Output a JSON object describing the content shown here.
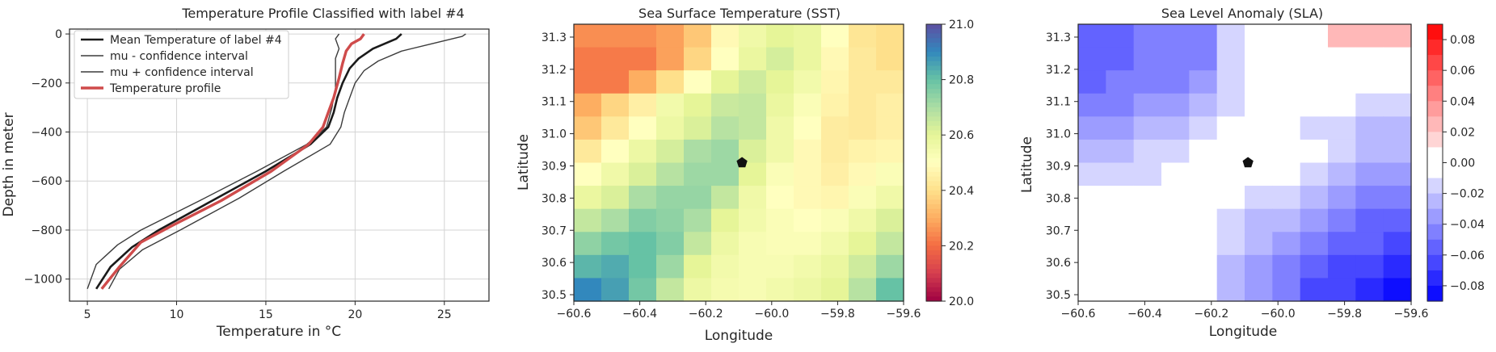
{
  "chart_data": [
    {
      "type": "line",
      "title": "Temperature Profile Classified with label #4",
      "xlabel": "Temperature in °C",
      "ylabel": "Depth in meter",
      "xlim": [
        4,
        27.5
      ],
      "ylim": [
        -1090,
        20
      ],
      "xticks": [
        5,
        10,
        15,
        20,
        25
      ],
      "yticks": [
        0,
        -200,
        -400,
        -600,
        -800,
        -1000
      ],
      "grid": true,
      "legend_position": "top-left",
      "series": [
        {
          "name": "Mean Temperature of label #4",
          "color": "#1a1a1a",
          "width": 2.6,
          "points": [
            [
              22.6,
              0
            ],
            [
              22.3,
              -20
            ],
            [
              21,
              -60
            ],
            [
              20.2,
              -100
            ],
            [
              19.7,
              -140
            ],
            [
              19.3,
              -200
            ],
            [
              19,
              -260
            ],
            [
              18.8,
              -320
            ],
            [
              18.5,
              -380
            ],
            [
              17.5,
              -450
            ],
            [
              15,
              -560
            ],
            [
              12,
              -680
            ],
            [
              9,
              -800
            ],
            [
              7.5,
              -870
            ],
            [
              6.3,
              -950
            ],
            [
              5.5,
              -1040
            ]
          ]
        },
        {
          "name": "mu - confidence interval",
          "color": "#3c3c3c",
          "width": 1.4,
          "points": [
            [
              19.1,
              0
            ],
            [
              18.9,
              -20
            ],
            [
              19.1,
              -60
            ],
            [
              18.9,
              -100
            ],
            [
              18.9,
              -160
            ],
            [
              18.9,
              -220
            ],
            [
              18.7,
              -300
            ],
            [
              18.4,
              -380
            ],
            [
              17.3,
              -450
            ],
            [
              14.5,
              -560
            ],
            [
              11.3,
              -680
            ],
            [
              8,
              -800
            ],
            [
              6.7,
              -860
            ],
            [
              5.5,
              -940
            ],
            [
              5,
              -1040
            ]
          ]
        },
        {
          "name": "mu + confidence interval",
          "color": "#3c3c3c",
          "width": 1.4,
          "points": [
            [
              26.2,
              0
            ],
            [
              26,
              -10
            ],
            [
              24.3,
              -40
            ],
            [
              22.6,
              -70
            ],
            [
              21.3,
              -110
            ],
            [
              20.5,
              -150
            ],
            [
              20,
              -200
            ],
            [
              19.7,
              -260
            ],
            [
              19.4,
              -320
            ],
            [
              19.2,
              -380
            ],
            [
              18.6,
              -450
            ],
            [
              16,
              -560
            ],
            [
              13.5,
              -670
            ],
            [
              10.2,
              -800
            ],
            [
              8.1,
              -880
            ],
            [
              6.8,
              -960
            ],
            [
              6.2,
              -1040
            ]
          ]
        },
        {
          "name": "Temperature profile",
          "color": "#cf4b4b",
          "width": 3.4,
          "points": [
            [
              20.5,
              0
            ],
            [
              20.3,
              -20
            ],
            [
              19.8,
              -40
            ],
            [
              19.5,
              -70
            ],
            [
              19.3,
              -120
            ],
            [
              19.1,
              -180
            ],
            [
              18.8,
              -260
            ],
            [
              18.5,
              -320
            ],
            [
              18.2,
              -380
            ],
            [
              17.4,
              -450
            ],
            [
              15.3,
              -560
            ],
            [
              12.5,
              -680
            ],
            [
              9.8,
              -780
            ],
            [
              8,
              -850
            ],
            [
              6.8,
              -950
            ],
            [
              5.8,
              -1040
            ]
          ]
        }
      ]
    },
    {
      "type": "heatmap",
      "title": "Sea Surface Temperature (SST)",
      "xlabel": "Longitude",
      "ylabel": "Latitude",
      "xlim": [
        -60.6,
        -59.6
      ],
      "ylim": [
        30.48,
        31.34
      ],
      "xticks": [
        -60.6,
        -60.4,
        -60.2,
        -60.0,
        -59.8,
        -59.6
      ],
      "xtick_labels": [
        "−60.6",
        "−60.4",
        "−60.2",
        "−60.0",
        "−59.8",
        "−59.6"
      ],
      "yticks": [
        30.5,
        30.6,
        30.7,
        30.8,
        30.9,
        31.0,
        31.1,
        31.2,
        31.3
      ],
      "yticks_labels": [
        "30.5",
        "30.6",
        "30.7",
        "30.8",
        "30.9",
        "31.0",
        "31.1",
        "31.2",
        "31.3"
      ],
      "cmap": "Spectral",
      "colorbar_range": [
        20.0,
        21.0
      ],
      "colorbar_ticks": [
        20.0,
        20.2,
        20.4,
        20.6,
        20.8,
        21.0
      ],
      "colorbar_tick_labels": [
        "20.0",
        "20.2",
        "20.4",
        "20.6",
        "20.8",
        "21.0"
      ],
      "marker": {
        "lon": -60.09,
        "lat": 30.91,
        "shape": "pentagon",
        "color": "#111111"
      },
      "grid_values": [
        [
          20.25,
          20.25,
          20.25,
          20.28,
          20.35,
          20.48,
          20.56,
          20.6,
          20.58,
          20.5,
          20.42,
          20.4
        ],
        [
          20.22,
          20.22,
          20.22,
          20.28,
          20.38,
          20.5,
          20.58,
          20.63,
          20.58,
          20.48,
          20.43,
          20.4
        ],
        [
          20.22,
          20.22,
          20.3,
          20.4,
          20.5,
          20.6,
          20.64,
          20.6,
          20.55,
          20.47,
          20.43,
          20.43
        ],
        [
          20.3,
          20.38,
          20.45,
          20.55,
          20.6,
          20.65,
          20.66,
          20.58,
          20.52,
          20.46,
          20.43,
          20.45
        ],
        [
          20.35,
          20.43,
          20.5,
          20.57,
          20.62,
          20.68,
          20.66,
          20.56,
          20.5,
          20.44,
          20.43,
          20.45
        ],
        [
          20.43,
          20.5,
          20.57,
          20.63,
          20.7,
          20.72,
          20.62,
          20.56,
          20.48,
          20.44,
          20.46,
          20.47
        ],
        [
          20.5,
          20.56,
          20.62,
          20.68,
          20.72,
          20.72,
          20.6,
          20.52,
          20.48,
          20.45,
          20.48,
          20.52
        ],
        [
          20.58,
          20.62,
          20.7,
          20.73,
          20.73,
          20.66,
          20.56,
          20.5,
          20.48,
          20.47,
          20.52,
          20.56
        ],
        [
          20.66,
          20.7,
          20.76,
          20.74,
          20.7,
          20.6,
          20.55,
          20.52,
          20.5,
          20.52,
          20.56,
          20.62
        ],
        [
          20.74,
          20.78,
          20.8,
          20.76,
          20.66,
          20.57,
          20.53,
          20.52,
          20.52,
          20.55,
          20.6,
          20.66
        ],
        [
          20.82,
          20.84,
          20.8,
          20.72,
          20.6,
          20.55,
          20.53,
          20.53,
          20.55,
          20.58,
          20.64,
          20.72
        ],
        [
          20.9,
          20.86,
          20.78,
          20.66,
          20.57,
          20.54,
          20.53,
          20.55,
          20.57,
          20.6,
          20.68,
          20.8
        ]
      ]
    },
    {
      "type": "heatmap",
      "title": "Sea Level Anomaly (SLA)",
      "xlabel": "Longitude",
      "ylabel": "Latitude",
      "xlim": [
        -60.6,
        -59.6
      ],
      "ylim": [
        30.48,
        31.34
      ],
      "xticks": [
        -60.6,
        -60.4,
        -60.2,
        -60.0,
        -59.8,
        -59.6
      ],
      "xtick_labels": [
        "−60.6",
        "−60.4",
        "−60.2",
        "−60.0",
        "−59.8",
        "−59.6"
      ],
      "yticks": [
        30.5,
        30.6,
        30.7,
        30.8,
        30.9,
        31.0,
        31.1,
        31.2,
        31.3
      ],
      "yticks_labels": [
        "30.5",
        "30.6",
        "30.7",
        "30.8",
        "30.9",
        "31.0",
        "31.1",
        "31.2",
        "31.3"
      ],
      "cmap": "bwr (discrete)",
      "colorbar_range": [
        -0.09,
        0.09
      ],
      "colorbar_ticks": [
        -0.08,
        -0.06,
        -0.04,
        -0.02,
        0.0,
        0.02,
        0.04,
        0.06,
        0.08
      ],
      "colorbar_tick_labels": [
        "−0.08",
        "−0.06",
        "−0.04",
        "−0.02",
        "0.00",
        "0.02",
        "0.04",
        "0.06",
        "0.08"
      ],
      "marker": {
        "lon": -60.09,
        "lat": 30.91,
        "shape": "pentagon",
        "color": "#111111"
      },
      "grid_values": [
        [
          -0.06,
          -0.06,
          -0.05,
          -0.05,
          -0.05,
          -0.02,
          -0.01,
          0.0,
          0.0,
          0.02,
          0.02,
          0.02
        ],
        [
          -0.06,
          -0.06,
          -0.05,
          -0.05,
          -0.05,
          -0.02,
          -0.01,
          0.0,
          0.0,
          0.0,
          0.0,
          0.0
        ],
        [
          -0.06,
          -0.05,
          -0.05,
          -0.05,
          -0.04,
          -0.02,
          -0.01,
          0.0,
          0.0,
          0.0,
          0.0,
          -0.01
        ],
        [
          -0.05,
          -0.05,
          -0.04,
          -0.04,
          -0.03,
          -0.02,
          -0.01,
          -0.01,
          -0.01,
          -0.01,
          -0.02,
          -0.02
        ],
        [
          -0.04,
          -0.04,
          -0.03,
          -0.03,
          -0.02,
          -0.01,
          -0.01,
          -0.01,
          -0.02,
          -0.02,
          -0.03,
          -0.03
        ],
        [
          -0.03,
          -0.03,
          -0.02,
          -0.02,
          -0.01,
          -0.01,
          -0.01,
          0.0,
          -0.01,
          -0.02,
          -0.03,
          -0.03
        ],
        [
          -0.02,
          -0.02,
          -0.02,
          -0.01,
          -0.01,
          -0.01,
          -0.01,
          -0.01,
          -0.02,
          -0.03,
          -0.04,
          -0.04
        ],
        [
          -0.01,
          -0.01,
          -0.01,
          -0.01,
          -0.01,
          -0.01,
          -0.02,
          -0.02,
          -0.03,
          -0.04,
          -0.05,
          -0.05
        ],
        [
          0.0,
          0.0,
          0.0,
          -0.01,
          -0.01,
          -0.02,
          -0.03,
          -0.03,
          -0.04,
          -0.05,
          -0.06,
          -0.06
        ],
        [
          0.0,
          0.0,
          0.0,
          -0.01,
          -0.01,
          -0.02,
          -0.03,
          -0.04,
          -0.05,
          -0.06,
          -0.06,
          -0.07
        ],
        [
          0.0,
          0.0,
          -0.01,
          -0.01,
          -0.01,
          -0.03,
          -0.04,
          -0.05,
          -0.06,
          -0.07,
          -0.07,
          -0.08
        ],
        [
          0.0,
          0.0,
          -0.01,
          -0.01,
          -0.01,
          -0.03,
          -0.04,
          -0.05,
          -0.07,
          -0.07,
          -0.08,
          -0.09
        ]
      ]
    }
  ]
}
